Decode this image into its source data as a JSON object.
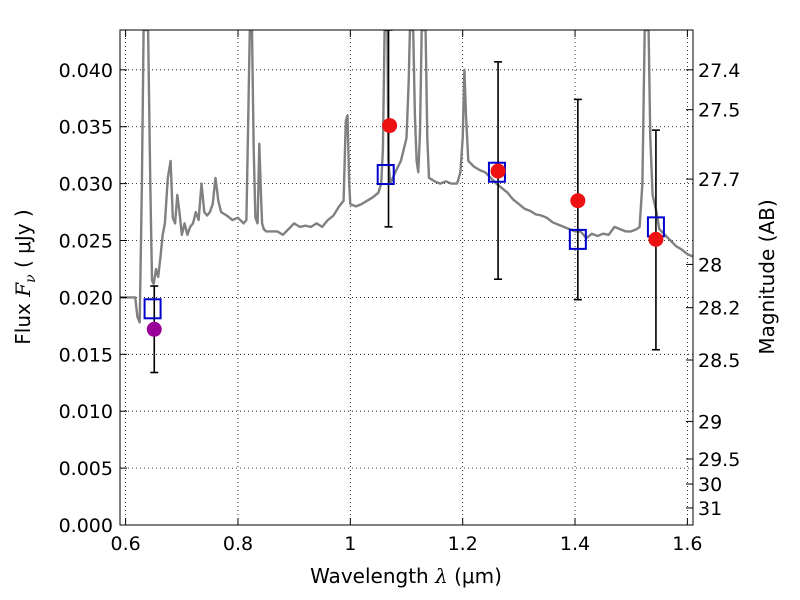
{
  "chart_data": {
    "type": "scatter",
    "xlabel": {
      "prefix": "Wavelength  ",
      "symbol": "λ",
      "units": " (μm)"
    },
    "ylabel": {
      "prefix": "Flux  ",
      "symbol": "F",
      "subscript": "ν",
      "units": "  ( μJy )"
    },
    "ylabel_right": "Magnitude (AB)",
    "xlim": [
      0.59,
      1.61
    ],
    "ylim": [
      0.0,
      0.0435
    ],
    "grid": true,
    "x_ticks": [
      {
        "value": 0.6,
        "label": "0.6"
      },
      {
        "value": 0.8,
        "label": "0.8"
      },
      {
        "value": 1.0,
        "label": "1"
      },
      {
        "value": 1.2,
        "label": "1.2"
      },
      {
        "value": 1.4,
        "label": "1.4"
      },
      {
        "value": 1.6,
        "label": "1.6"
      }
    ],
    "y_ticks": [
      {
        "value": 0.0,
        "label": "0.000"
      },
      {
        "value": 0.005,
        "label": "0.005"
      },
      {
        "value": 0.01,
        "label": "0.010"
      },
      {
        "value": 0.015,
        "label": "0.015"
      },
      {
        "value": 0.02,
        "label": "0.020"
      },
      {
        "value": 0.025,
        "label": "0.025"
      },
      {
        "value": 0.03,
        "label": "0.030"
      },
      {
        "value": 0.035,
        "label": "0.035"
      },
      {
        "value": 0.04,
        "label": "0.040"
      }
    ],
    "mag_ticks": [
      {
        "label": "27.4",
        "flux": 0.04
      },
      {
        "label": "27.5",
        "flux": 0.0365
      },
      {
        "label": "27.7",
        "flux": 0.0304
      },
      {
        "label": "28",
        "flux": 0.0229
      },
      {
        "label": "28.2",
        "flux": 0.0191
      },
      {
        "label": "28.5",
        "flux": 0.0145
      },
      {
        "label": "29",
        "flux": 0.0091
      },
      {
        "label": "29.5",
        "flux": 0.0058
      },
      {
        "label": "30",
        "flux": 0.0036
      },
      {
        "label": "31",
        "flux": 0.0015
      }
    ],
    "series": [
      {
        "type": "line",
        "color": "#808080",
        "points": [
          [
            0.59,
            0.02
          ],
          [
            0.6,
            0.02
          ],
          [
            0.61,
            0.02
          ],
          [
            0.617,
            0.02
          ],
          [
            0.621,
            0.0183
          ],
          [
            0.625,
            0.0178
          ],
          [
            0.629,
            0.03
          ],
          [
            0.632,
            0.0435
          ],
          [
            0.64,
            0.0435
          ],
          [
            0.644,
            0.03
          ],
          [
            0.647,
            0.0215
          ],
          [
            0.65,
            0.0212
          ],
          [
            0.654,
            0.0225
          ],
          [
            0.658,
            0.0218
          ],
          [
            0.662,
            0.0235
          ],
          [
            0.666,
            0.0255
          ],
          [
            0.67,
            0.0265
          ],
          [
            0.675,
            0.0305
          ],
          [
            0.68,
            0.032
          ],
          [
            0.684,
            0.027
          ],
          [
            0.688,
            0.0265
          ],
          [
            0.692,
            0.029
          ],
          [
            0.696,
            0.0275
          ],
          [
            0.7,
            0.0255
          ],
          [
            0.705,
            0.0265
          ],
          [
            0.71,
            0.0255
          ],
          [
            0.715,
            0.0262
          ],
          [
            0.72,
            0.0265
          ],
          [
            0.725,
            0.0275
          ],
          [
            0.73,
            0.0268
          ],
          [
            0.735,
            0.03
          ],
          [
            0.74,
            0.0275
          ],
          [
            0.745,
            0.0272
          ],
          [
            0.75,
            0.0275
          ],
          [
            0.755,
            0.0282
          ],
          [
            0.76,
            0.0305
          ],
          [
            0.765,
            0.0285
          ],
          [
            0.77,
            0.0275
          ],
          [
            0.78,
            0.0272
          ],
          [
            0.79,
            0.0268
          ],
          [
            0.8,
            0.027
          ],
          [
            0.81,
            0.0265
          ],
          [
            0.815,
            0.0268
          ],
          [
            0.818,
            0.035
          ],
          [
            0.821,
            0.0435
          ],
          [
            0.825,
            0.0435
          ],
          [
            0.828,
            0.033
          ],
          [
            0.831,
            0.027
          ],
          [
            0.835,
            0.0265
          ],
          [
            0.838,
            0.0335
          ],
          [
            0.841,
            0.029
          ],
          [
            0.843,
            0.0265
          ],
          [
            0.846,
            0.026
          ],
          [
            0.85,
            0.0258
          ],
          [
            0.86,
            0.0258
          ],
          [
            0.87,
            0.0258
          ],
          [
            0.88,
            0.0255
          ],
          [
            0.89,
            0.026
          ],
          [
            0.9,
            0.0265
          ],
          [
            0.91,
            0.0262
          ],
          [
            0.92,
            0.0263
          ],
          [
            0.93,
            0.0262
          ],
          [
            0.94,
            0.0265
          ],
          [
            0.95,
            0.0262
          ],
          [
            0.96,
            0.0268
          ],
          [
            0.97,
            0.0272
          ],
          [
            0.98,
            0.028
          ],
          [
            0.988,
            0.0285
          ],
          [
            0.992,
            0.0355
          ],
          [
            0.995,
            0.036
          ],
          [
            0.998,
            0.03
          ],
          [
            1.0,
            0.0282
          ],
          [
            1.01,
            0.028
          ],
          [
            1.02,
            0.0282
          ],
          [
            1.03,
            0.0285
          ],
          [
            1.04,
            0.0288
          ],
          [
            1.05,
            0.0292
          ],
          [
            1.055,
            0.03
          ],
          [
            1.058,
            0.033
          ],
          [
            1.061,
            0.0435
          ],
          [
            1.066,
            0.0435
          ],
          [
            1.068,
            0.032
          ],
          [
            1.071,
            0.03
          ],
          [
            1.08,
            0.031
          ],
          [
            1.09,
            0.032
          ],
          [
            1.1,
            0.034
          ],
          [
            1.104,
            0.039
          ],
          [
            1.106,
            0.0435
          ],
          [
            1.112,
            0.0435
          ],
          [
            1.115,
            0.036
          ],
          [
            1.118,
            0.032
          ],
          [
            1.121,
            0.031
          ],
          [
            1.124,
            0.0345
          ],
          [
            1.127,
            0.0435
          ],
          [
            1.134,
            0.0435
          ],
          [
            1.137,
            0.034
          ],
          [
            1.14,
            0.0305
          ],
          [
            1.15,
            0.0302
          ],
          [
            1.16,
            0.03
          ],
          [
            1.17,
            0.0302
          ],
          [
            1.18,
            0.03
          ],
          [
            1.19,
            0.03
          ],
          [
            1.196,
            0.031
          ],
          [
            1.2,
            0.034
          ],
          [
            1.203,
            0.04
          ],
          [
            1.206,
            0.036
          ],
          [
            1.21,
            0.032
          ],
          [
            1.22,
            0.0315
          ],
          [
            1.23,
            0.0312
          ],
          [
            1.24,
            0.031
          ],
          [
            1.25,
            0.0305
          ],
          [
            1.26,
            0.03
          ],
          [
            1.27,
            0.0296
          ],
          [
            1.28,
            0.0292
          ],
          [
            1.29,
            0.0286
          ],
          [
            1.3,
            0.0282
          ],
          [
            1.31,
            0.0278
          ],
          [
            1.32,
            0.0276
          ],
          [
            1.33,
            0.0273
          ],
          [
            1.34,
            0.0272
          ],
          [
            1.35,
            0.027
          ],
          [
            1.36,
            0.0266
          ],
          [
            1.37,
            0.0264
          ],
          [
            1.38,
            0.0262
          ],
          [
            1.39,
            0.026
          ],
          [
            1.4,
            0.0258
          ],
          [
            1.41,
            0.0258
          ],
          [
            1.42,
            0.0252
          ],
          [
            1.43,
            0.0256
          ],
          [
            1.44,
            0.0254
          ],
          [
            1.45,
            0.0256
          ],
          [
            1.46,
            0.0255
          ],
          [
            1.47,
            0.0262
          ],
          [
            1.48,
            0.026
          ],
          [
            1.49,
            0.0258
          ],
          [
            1.5,
            0.0258
          ],
          [
            1.51,
            0.026
          ],
          [
            1.515,
            0.0262
          ],
          [
            1.52,
            0.03
          ],
          [
            1.524,
            0.0435
          ],
          [
            1.531,
            0.0435
          ],
          [
            1.534,
            0.034
          ],
          [
            1.538,
            0.029
          ],
          [
            1.545,
            0.0275
          ],
          [
            1.55,
            0.026
          ],
          [
            1.56,
            0.0255
          ],
          [
            1.57,
            0.025
          ],
          [
            1.58,
            0.0245
          ],
          [
            1.59,
            0.0242
          ],
          [
            1.6,
            0.0238
          ],
          [
            1.61,
            0.0236
          ]
        ]
      },
      {
        "type": "errorbar",
        "color": "#000000",
        "points": [
          {
            "x": 0.651,
            "lo": 0.0134,
            "hi": 0.021
          },
          {
            "x": 1.068,
            "lo": 0.0262,
            "hi": 0.0435
          },
          {
            "x": 1.263,
            "lo": 0.0216,
            "hi": 0.0407
          },
          {
            "x": 1.405,
            "lo": 0.0198,
            "hi": 0.0374
          },
          {
            "x": 1.544,
            "lo": 0.0154,
            "hi": 0.0347
          }
        ]
      },
      {
        "type": "square",
        "color": "#0000cc",
        "points": [
          [
            0.648,
            0.019
          ],
          [
            1.063,
            0.0308
          ],
          [
            1.261,
            0.031
          ],
          [
            1.405,
            0.0251
          ],
          [
            1.544,
            0.0262
          ]
        ]
      },
      {
        "type": "circle",
        "color": "#ee1111",
        "points": [
          [
            1.07,
            0.0351
          ],
          [
            1.263,
            0.0311
          ],
          [
            1.405,
            0.0285
          ],
          [
            1.544,
            0.0251
          ]
        ]
      },
      {
        "type": "circle",
        "color": "#990099",
        "points": [
          [
            0.651,
            0.0172
          ]
        ]
      }
    ]
  }
}
